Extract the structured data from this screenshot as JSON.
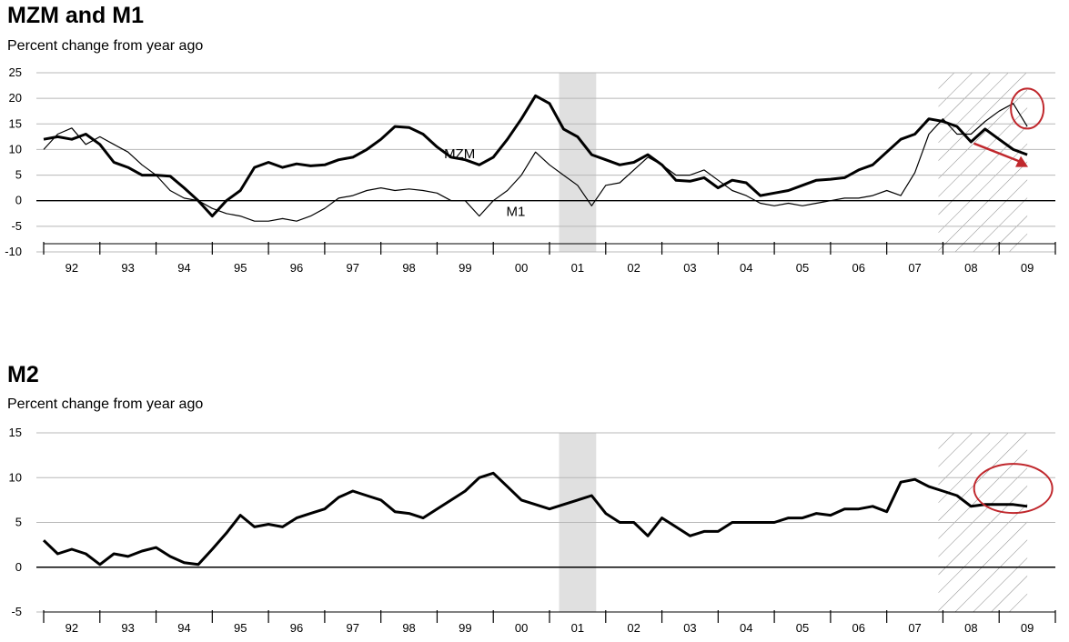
{
  "charts": [
    {
      "title": "MZM and M1",
      "subtitle": "Percent change from year ago"
    },
    {
      "title": "M2",
      "subtitle": "Percent change from year ago"
    }
  ],
  "chart_data": [
    {
      "type": "line",
      "title": "MZM and M1",
      "subtitle": "Percent change from year ago",
      "ylabel": "",
      "ylim": [
        -10,
        25
      ],
      "yticks": [
        25,
        20,
        15,
        10,
        5,
        0,
        -5,
        -10
      ],
      "xlim": [
        1992.0,
        2010.0
      ],
      "xtick_labels": [
        "92",
        "93",
        "94",
        "95",
        "96",
        "97",
        "98",
        "99",
        "00",
        "01",
        "02",
        "03",
        "04",
        "05",
        "06",
        "07",
        "08",
        "09"
      ],
      "recessions": [
        [
          2001.17,
          2001.83
        ],
        [
          2007.92,
          2009.5
        ]
      ],
      "recession_styles": [
        "shaded",
        "hatched"
      ],
      "series": [
        {
          "name": "MZM",
          "style": "thick",
          "x": [
            1992.0,
            1992.25,
            1992.5,
            1992.75,
            1993.0,
            1993.25,
            1993.5,
            1993.75,
            1994.0,
            1994.25,
            1994.5,
            1994.75,
            1995.0,
            1995.25,
            1995.5,
            1995.75,
            1996.0,
            1996.25,
            1996.5,
            1996.75,
            1997.0,
            1997.25,
            1997.5,
            1997.75,
            1998.0,
            1998.25,
            1998.5,
            1998.75,
            1999.0,
            1999.25,
            1999.5,
            1999.75,
            2000.0,
            2000.25,
            2000.5,
            2000.75,
            2001.0,
            2001.25,
            2001.5,
            2001.75,
            2002.0,
            2002.25,
            2002.5,
            2002.75,
            2003.0,
            2003.25,
            2003.5,
            2003.75,
            2004.0,
            2004.25,
            2004.5,
            2004.75,
            2005.0,
            2005.25,
            2005.5,
            2005.75,
            2006.0,
            2006.25,
            2006.5,
            2006.75,
            2007.0,
            2007.25,
            2007.5,
            2007.75,
            2008.0,
            2008.25,
            2008.5,
            2008.75,
            2009.0,
            2009.25,
            2009.5
          ],
          "y": [
            12,
            12.5,
            12,
            13,
            11,
            7.5,
            6.5,
            5,
            5,
            4.8,
            2.5,
            0,
            -3,
            0,
            2,
            6.5,
            7.5,
            6.5,
            7.2,
            6.8,
            7,
            8,
            8.5,
            10,
            12,
            14.5,
            14.3,
            13,
            10.5,
            8.5,
            8,
            7,
            8.5,
            12,
            16,
            20.5,
            19,
            14,
            12.5,
            9,
            8,
            7,
            7.5,
            9,
            7,
            4,
            3.8,
            4.5,
            2.5,
            4,
            3.5,
            1,
            1.5,
            2,
            3,
            4,
            4.2,
            4.5,
            6,
            7,
            9.5,
            12,
            13,
            16,
            15.5,
            14.5,
            11.5,
            14,
            12,
            10,
            9
          ]
        },
        {
          "name": "M1",
          "style": "thin",
          "x": [
            1992.0,
            1992.25,
            1992.5,
            1992.75,
            1993.0,
            1993.25,
            1993.5,
            1993.75,
            1994.0,
            1994.25,
            1994.5,
            1994.75,
            1995.0,
            1995.25,
            1995.5,
            1995.75,
            1996.0,
            1996.25,
            1996.5,
            1996.75,
            1997.0,
            1997.25,
            1997.5,
            1997.75,
            1998.0,
            1998.25,
            1998.5,
            1998.75,
            1999.0,
            1999.25,
            1999.5,
            1999.75,
            2000.0,
            2000.25,
            2000.5,
            2000.75,
            2001.0,
            2001.25,
            2001.5,
            2001.75,
            2002.0,
            2002.25,
            2002.5,
            2002.75,
            2003.0,
            2003.25,
            2003.5,
            2003.75,
            2004.0,
            2004.25,
            2004.5,
            2004.75,
            2005.0,
            2005.25,
            2005.5,
            2005.75,
            2006.0,
            2006.25,
            2006.5,
            2006.75,
            2007.0,
            2007.25,
            2007.5,
            2007.75,
            2008.0,
            2008.25,
            2008.5,
            2008.75,
            2009.0,
            2009.25,
            2009.5
          ],
          "y": [
            10,
            13,
            14.2,
            11,
            12.5,
            11,
            9.5,
            7,
            5,
            2,
            0.5,
            0,
            -1.5,
            -2.5,
            -3,
            -4,
            -4,
            -3.5,
            -4,
            -3,
            -1.5,
            0.5,
            1,
            2,
            2.5,
            2,
            2.3,
            2,
            1.5,
            0,
            0,
            -3,
            0,
            2,
            5,
            9.5,
            7,
            5,
            3,
            -1,
            3,
            3.5,
            6,
            8.5,
            7,
            5,
            5,
            6,
            4,
            2,
            1,
            -0.5,
            -1,
            -0.5,
            -1,
            -0.5,
            0,
            0.5,
            0.5,
            1,
            2,
            1,
            5.5,
            13,
            16,
            13,
            13,
            15.5,
            17.5,
            19,
            14.5
          ]
        }
      ],
      "annotations": [
        {
          "text": "MZM",
          "x": 1999.4,
          "y": 8.3
        },
        {
          "text": "M1",
          "x": 2000.4,
          "y": -3
        }
      ]
    },
    {
      "type": "line",
      "title": "M2",
      "subtitle": "Percent change from year ago",
      "ylabel": "",
      "ylim": [
        -5,
        15
      ],
      "yticks": [
        15,
        10,
        5,
        0,
        -5
      ],
      "xlim": [
        1992.0,
        2010.0
      ],
      "xtick_labels": [
        "92",
        "93",
        "94",
        "95",
        "96",
        "97",
        "98",
        "99",
        "00",
        "01",
        "02",
        "03",
        "04",
        "05",
        "06",
        "07",
        "08",
        "09"
      ],
      "recessions": [
        [
          2001.17,
          2001.83
        ],
        [
          2007.92,
          2009.5
        ]
      ],
      "recession_styles": [
        "shaded",
        "hatched"
      ],
      "series": [
        {
          "name": "M2",
          "style": "thick",
          "x": [
            1992.0,
            1992.25,
            1992.5,
            1992.75,
            1993.0,
            1993.25,
            1993.5,
            1993.75,
            1994.0,
            1994.25,
            1994.5,
            1994.75,
            1995.0,
            1995.25,
            1995.5,
            1995.75,
            1996.0,
            1996.25,
            1996.5,
            1996.75,
            1997.0,
            1997.25,
            1997.5,
            1997.75,
            1998.0,
            1998.25,
            1998.5,
            1998.75,
            1999.0,
            1999.25,
            1999.5,
            1999.75,
            2000.0,
            2000.25,
            2000.5,
            2000.75,
            2001.0,
            2001.25,
            2001.5,
            2001.75,
            2002.0,
            2002.25,
            2002.5,
            2002.75,
            2003.0,
            2003.25,
            2003.5,
            2003.75,
            2004.0,
            2004.25,
            2004.5,
            2004.75,
            2005.0,
            2005.25,
            2005.5,
            2005.75,
            2006.0,
            2006.25,
            2006.5,
            2006.75,
            2007.0,
            2007.25,
            2007.5,
            2007.75,
            2008.0,
            2008.25,
            2008.5,
            2008.75,
            2009.0,
            2009.25,
            2009.5
          ],
          "y": [
            3,
            1.5,
            2,
            1.5,
            0.3,
            1.5,
            1.2,
            1.8,
            2.2,
            1.2,
            0.5,
            0.3,
            2,
            3.8,
            5.8,
            4.5,
            4.8,
            4.5,
            5.5,
            6,
            6.5,
            7.8,
            8.5,
            8,
            7.5,
            6.2,
            6,
            5.5,
            6.5,
            7.5,
            8.5,
            10,
            10.5,
            9,
            7.5,
            7,
            6.5,
            7,
            7.5,
            8,
            6,
            5,
            5,
            3.5,
            5.5,
            4.5,
            3.5,
            4,
            4,
            5,
            5,
            5,
            5,
            5.5,
            5.5,
            6,
            5.8,
            6.5,
            6.5,
            6.8,
            6.2,
            9.5,
            9.8,
            9,
            8.5,
            8,
            6.8,
            7,
            7,
            7,
            6.8
          ]
        }
      ],
      "annotations": []
    }
  ]
}
